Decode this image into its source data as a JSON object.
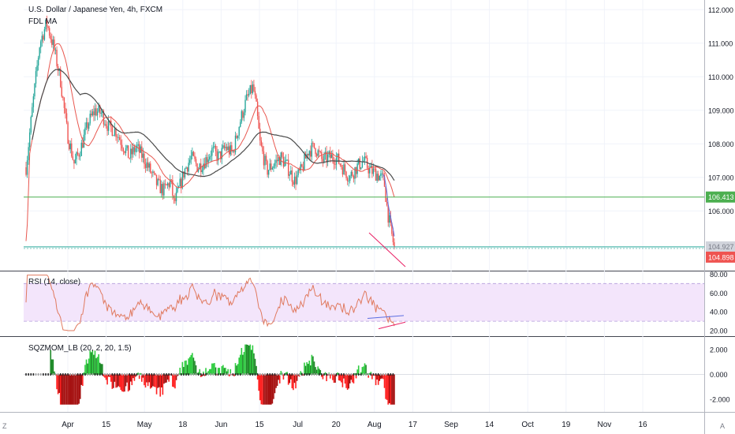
{
  "header": {
    "symbol_title": "U.S. Dollar / Japanese Yen, 4h, FXCM",
    "study_label": "FDL MA"
  },
  "rsi": {
    "title": "RSI (14, close)"
  },
  "squeeze": {
    "title": "SQZMOM_LB (20, 2, 20, 1.5)"
  },
  "corner": {
    "left": "Z",
    "right": "A"
  },
  "colors": {
    "price_up": "#26a69a",
    "price_down": "#ef5350",
    "ma_red": "#e8574f",
    "ma_black": "#4a4a4a",
    "ma_blue": "#5b6ee1",
    "support_green": "#4caf50",
    "support_teal": "#26a69a",
    "price_badge": "#ef5350",
    "rsi_line": "#e07a5f",
    "rsi_band": "#f3e5fb",
    "mom_green_bright": "#2ecc40",
    "mom_green_dark": "#1e8a28",
    "mom_red_bright": "#ff2020",
    "mom_red_dark": "#a51010"
  },
  "chart_data": [
    {
      "type": "candlestick",
      "title": "U.S. Dollar / Japanese Yen, 4h, FXCM",
      "y_ticks": [
        "112.000",
        "111.000",
        "110.000",
        "109.000",
        "108.000",
        "107.000",
        "106.000"
      ],
      "ylim": [
        104.5,
        112.1
      ],
      "x_tick_labels": [
        "Apr",
        "15",
        "May",
        "18",
        "Jun",
        "15",
        "Jul",
        "20",
        "Aug",
        "17",
        "Sep",
        "14",
        "Oct",
        "19",
        "Nov",
        "16"
      ],
      "price_path": [
        {
          "x": 0.0,
          "y": 107.3
        },
        {
          "x": 0.01,
          "y": 109.2
        },
        {
          "x": 0.02,
          "y": 111.0
        },
        {
          "x": 0.03,
          "y": 111.6
        },
        {
          "x": 0.04,
          "y": 110.9
        },
        {
          "x": 0.05,
          "y": 109.9
        },
        {
          "x": 0.06,
          "y": 108.3
        },
        {
          "x": 0.07,
          "y": 107.4
        },
        {
          "x": 0.08,
          "y": 107.9
        },
        {
          "x": 0.09,
          "y": 108.6
        },
        {
          "x": 0.1,
          "y": 109.0
        },
        {
          "x": 0.11,
          "y": 108.9
        },
        {
          "x": 0.12,
          "y": 108.5
        },
        {
          "x": 0.13,
          "y": 108.4
        },
        {
          "x": 0.14,
          "y": 108.0
        },
        {
          "x": 0.15,
          "y": 107.6
        },
        {
          "x": 0.16,
          "y": 107.9
        },
        {
          "x": 0.17,
          "y": 107.6
        },
        {
          "x": 0.18,
          "y": 107.2
        },
        {
          "x": 0.19,
          "y": 106.8
        },
        {
          "x": 0.2,
          "y": 106.6
        },
        {
          "x": 0.21,
          "y": 106.9
        },
        {
          "x": 0.215,
          "y": 106.2
        },
        {
          "x": 0.22,
          "y": 106.5
        },
        {
          "x": 0.23,
          "y": 107.2
        },
        {
          "x": 0.24,
          "y": 107.6
        },
        {
          "x": 0.25,
          "y": 107.3
        },
        {
          "x": 0.26,
          "y": 107.5
        },
        {
          "x": 0.27,
          "y": 107.8
        },
        {
          "x": 0.28,
          "y": 107.6
        },
        {
          "x": 0.29,
          "y": 107.9
        },
        {
          "x": 0.3,
          "y": 107.7
        },
        {
          "x": 0.31,
          "y": 108.6
        },
        {
          "x": 0.32,
          "y": 109.3
        },
        {
          "x": 0.33,
          "y": 109.7
        },
        {
          "x": 0.335,
          "y": 109.0
        },
        {
          "x": 0.34,
          "y": 108.0
        },
        {
          "x": 0.35,
          "y": 107.2
        },
        {
          "x": 0.36,
          "y": 107.4
        },
        {
          "x": 0.37,
          "y": 107.6
        },
        {
          "x": 0.38,
          "y": 107.3
        },
        {
          "x": 0.39,
          "y": 106.9
        },
        {
          "x": 0.4,
          "y": 107.2
        },
        {
          "x": 0.41,
          "y": 107.8
        },
        {
          "x": 0.42,
          "y": 107.9
        },
        {
          "x": 0.43,
          "y": 107.5
        },
        {
          "x": 0.44,
          "y": 107.6
        },
        {
          "x": 0.45,
          "y": 107.6
        },
        {
          "x": 0.46,
          "y": 107.3
        },
        {
          "x": 0.47,
          "y": 107.0
        },
        {
          "x": 0.48,
          "y": 107.3
        },
        {
          "x": 0.49,
          "y": 107.5
        },
        {
          "x": 0.5,
          "y": 107.2
        },
        {
          "x": 0.51,
          "y": 107.1
        },
        {
          "x": 0.52,
          "y": 106.9
        },
        {
          "x": 0.525,
          "y": 106.0
        },
        {
          "x": 0.53,
          "y": 105.4
        },
        {
          "x": 0.535,
          "y": 104.9
        }
      ]
    },
    {
      "type": "line",
      "title": "RSI (14, close)",
      "y_ticks": [
        "80.00",
        "60.00",
        "40.00",
        "20.00"
      ],
      "ylim": [
        15,
        82
      ],
      "band": [
        30,
        70
      ]
    },
    {
      "type": "bar",
      "title": "SQZMOM_LB (20, 2, 20, 1.5)",
      "y_ticks": [
        "2.000",
        "0.000",
        "-2.000"
      ],
      "ylim": [
        -2.5,
        2.5
      ]
    }
  ],
  "price_scale": {
    "level_106": "106.413",
    "level_current_grey": "104.927",
    "level_current": "104.898"
  }
}
